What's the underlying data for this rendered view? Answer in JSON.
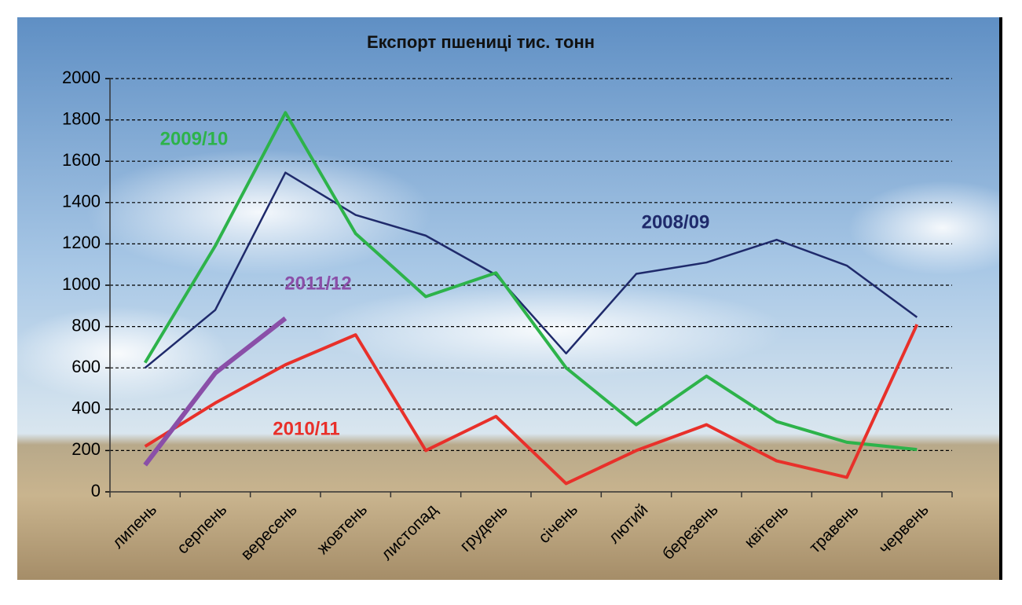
{
  "chart_data": {
    "type": "line",
    "title": "Експорт пшениці тис. тонн",
    "categories": [
      "липень",
      "серпень",
      "вересень",
      "жовтень",
      "листопад",
      "грудень",
      "січень",
      "лютий",
      "березень",
      "квітень",
      "травень",
      "червень"
    ],
    "series": [
      {
        "name": "2008/09",
        "color": "#1f2a6b",
        "values": [
          600,
          880,
          1545,
          1340,
          1240,
          1050,
          670,
          1055,
          1110,
          1220,
          1095,
          845
        ]
      },
      {
        "name": "2009/10",
        "color": "#2db34a",
        "values": [
          625,
          1190,
          1835,
          1250,
          945,
          1060,
          600,
          325,
          560,
          340,
          240,
          205
        ]
      },
      {
        "name": "2010/11",
        "color": "#e8302a",
        "values": [
          220,
          430,
          615,
          760,
          200,
          365,
          40,
          200,
          325,
          150,
          70,
          810
        ]
      },
      {
        "name": "2011/12",
        "color": "#8a4fa8",
        "values": [
          130,
          575,
          840,
          null,
          null,
          null,
          null,
          null,
          null,
          null,
          null,
          null
        ]
      }
    ],
    "ylim": [
      0,
      2000
    ],
    "yticks": [
      0,
      200,
      400,
      600,
      800,
      1000,
      1200,
      1400,
      1600,
      1800,
      2000
    ],
    "grid": true
  }
}
